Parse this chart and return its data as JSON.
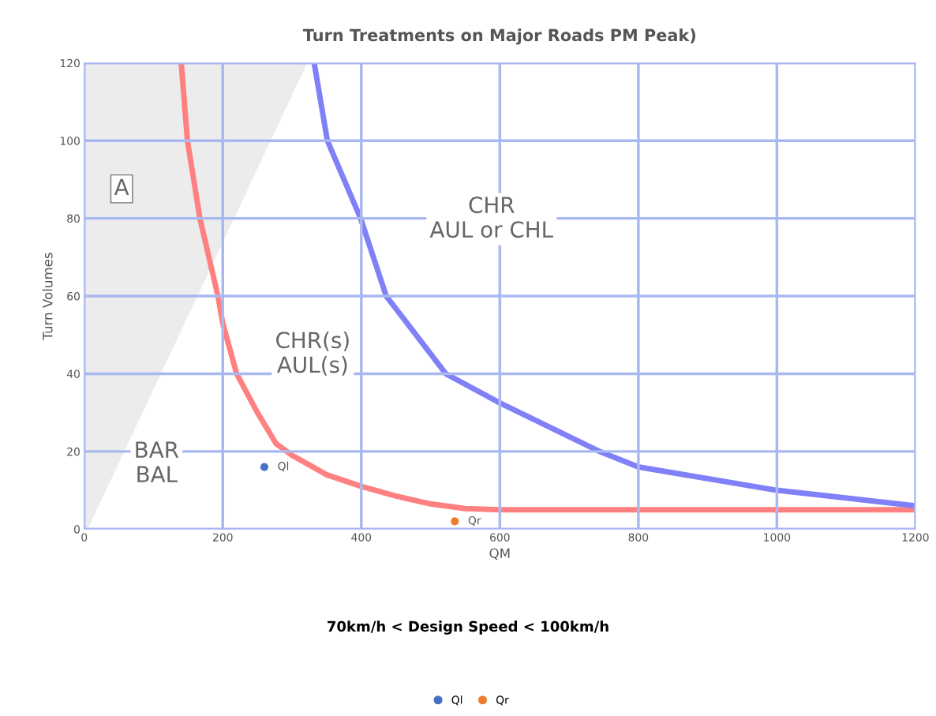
{
  "chart_data": {
    "type": "line",
    "title": "Turn Treatments on Major Roads PM Peak)",
    "xlabel": "QM",
    "ylabel": "Turn Volumes",
    "xlim": [
      0,
      1200
    ],
    "xticks": [
      0,
      200,
      400,
      600,
      800,
      1000,
      1200
    ],
    "ylim": [
      0,
      120
    ],
    "yticks": [
      0,
      20,
      40,
      60,
      80,
      100,
      120
    ],
    "grid": true,
    "legend": "bottom",
    "series": [
      {
        "type": "area",
        "color": "#ececec",
        "x": [
          0,
          5,
          322
        ],
        "values": [
          0,
          0,
          120
        ]
      },
      {
        "color": "#ff8080",
        "x": [
          140,
          149,
          167,
          193,
          200,
          220,
          250,
          277,
          300,
          350,
          400,
          450,
          500,
          550,
          600,
          700,
          1200
        ],
        "values": [
          120,
          100,
          80,
          60,
          53,
          40,
          30,
          22,
          19,
          14,
          11,
          8.5,
          6.5,
          5.3,
          5,
          5,
          5
        ]
      },
      {
        "color": "#8080f8",
        "x": [
          332,
          351,
          399,
          436,
          522,
          600,
          744,
          800,
          1000,
          1200
        ],
        "values": [
          120,
          100,
          80,
          60,
          40,
          32.5,
          20,
          16,
          10,
          6
        ]
      },
      {
        "type": "scatter",
        "name": "Ql",
        "color": "#4472c4",
        "x": [
          260
        ],
        "values": [
          16
        ]
      },
      {
        "type": "scatter",
        "name": "Qr",
        "color": "#ed7d31",
        "x": [
          535
        ],
        "values": [
          2
        ]
      }
    ],
    "annotations": [
      "A",
      "CHR\nAUL or CHL",
      "CHR(s)\nAUL(s)",
      "BAR\nBAL",
      "70km/h < Design Speed < 100km/h"
    ]
  }
}
